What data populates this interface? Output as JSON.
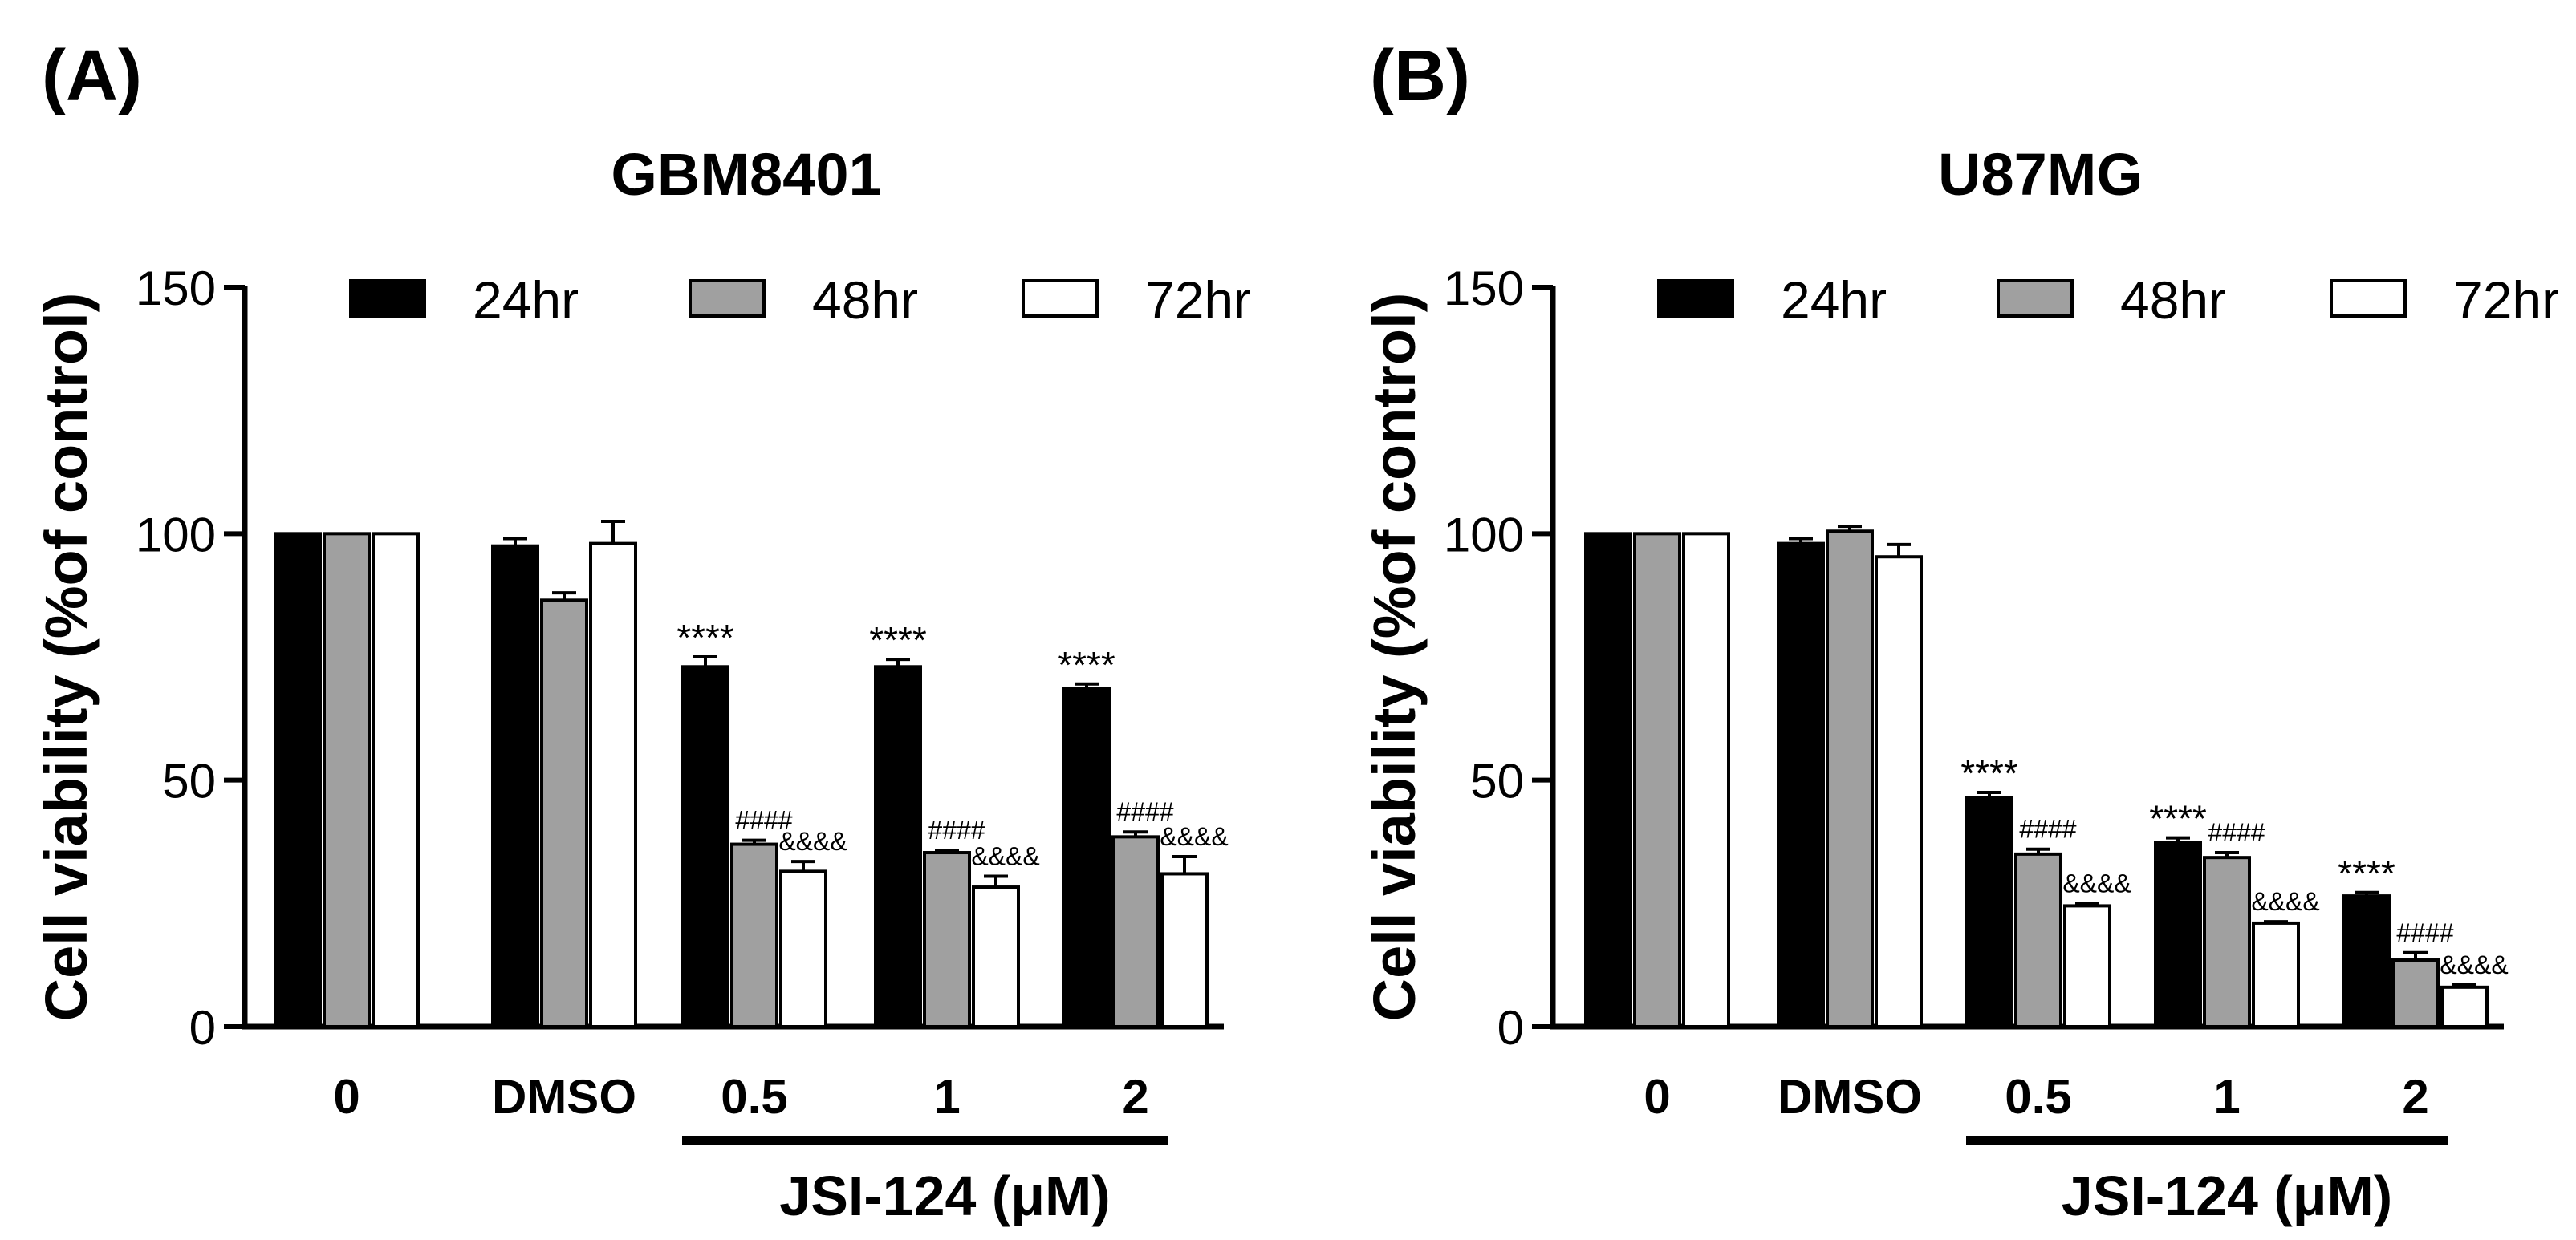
{
  "chart_data": [
    {
      "type": "bar",
      "panel_label": "(A)",
      "title": "GBM8401",
      "ylabel": "Cell viability (%of control)",
      "xlabel": "JSI-124 (μM)",
      "xlabel_span": [
        "0.5",
        "2"
      ],
      "ylim": [
        0,
        150
      ],
      "yticks": [
        0,
        50,
        100,
        150
      ],
      "categories": [
        "0",
        "DMSO",
        "0.5",
        "1",
        "2"
      ],
      "legend_position": "top",
      "series": [
        {
          "name": "24hr",
          "fill": "#000000",
          "values": [
            100,
            97.5,
            73,
            73,
            68.5
          ],
          "errors": [
            0,
            1.5,
            2,
            1.5,
            1
          ]
        },
        {
          "name": "48hr",
          "fill": "#a0a0a0",
          "values": [
            100,
            86.5,
            37,
            35.3,
            38.5
          ],
          "errors": [
            0,
            1.5,
            0.8,
            0.5,
            1
          ]
        },
        {
          "name": "72hr",
          "fill": "#ffffff",
          "values": [
            100,
            98,
            31.5,
            28.3,
            31
          ],
          "errors": [
            0,
            4.5,
            2,
            2.2,
            3.5
          ]
        }
      ],
      "annotations": [
        {
          "series": 0,
          "category": 2,
          "text": "****"
        },
        {
          "series": 0,
          "category": 3,
          "text": "****"
        },
        {
          "series": 0,
          "category": 4,
          "text": "****"
        },
        {
          "series": 1,
          "category": 2,
          "text": "####"
        },
        {
          "series": 1,
          "category": 3,
          "text": "####"
        },
        {
          "series": 1,
          "category": 4,
          "text": "####"
        },
        {
          "series": 2,
          "category": 2,
          "text": "&&&&"
        },
        {
          "series": 2,
          "category": 3,
          "text": "&&&&"
        },
        {
          "series": 2,
          "category": 4,
          "text": "&&&&"
        }
      ]
    },
    {
      "type": "bar",
      "panel_label": "(B)",
      "title": "U87MG",
      "ylabel": "Cell viability (%of control)",
      "xlabel": "JSI-124 (μM)",
      "xlabel_span": [
        "0.5",
        "2"
      ],
      "ylim": [
        0,
        150
      ],
      "yticks": [
        0,
        50,
        100,
        150
      ],
      "categories": [
        "0",
        "DMSO",
        "0.5",
        "1",
        "2"
      ],
      "legend_position": "top",
      "series": [
        {
          "name": "24hr",
          "fill": "#000000",
          "values": [
            100,
            98,
            46.5,
            37.3,
            26.5
          ],
          "errors": [
            0,
            1,
            1,
            1,
            0.7
          ]
        },
        {
          "name": "48hr",
          "fill": "#a0a0a0",
          "values": [
            100,
            100.5,
            35,
            34.3,
            13.5
          ],
          "errors": [
            0,
            1,
            1,
            1,
            1.5
          ]
        },
        {
          "name": "72hr",
          "fill": "#ffffff",
          "values": [
            100,
            95.3,
            24.5,
            21,
            8
          ],
          "errors": [
            0,
            2.5,
            0.5,
            0.3,
            0.5
          ]
        }
      ],
      "annotations": [
        {
          "series": 0,
          "category": 2,
          "text": "****"
        },
        {
          "series": 0,
          "category": 3,
          "text": "****"
        },
        {
          "series": 0,
          "category": 4,
          "text": "****"
        },
        {
          "series": 1,
          "category": 2,
          "text": "####"
        },
        {
          "series": 1,
          "category": 3,
          "text": "####"
        },
        {
          "series": 1,
          "category": 4,
          "text": "####"
        },
        {
          "series": 2,
          "category": 2,
          "text": "&&&&"
        },
        {
          "series": 2,
          "category": 3,
          "text": "&&&&"
        },
        {
          "series": 2,
          "category": 4,
          "text": "&&&&"
        }
      ]
    }
  ]
}
